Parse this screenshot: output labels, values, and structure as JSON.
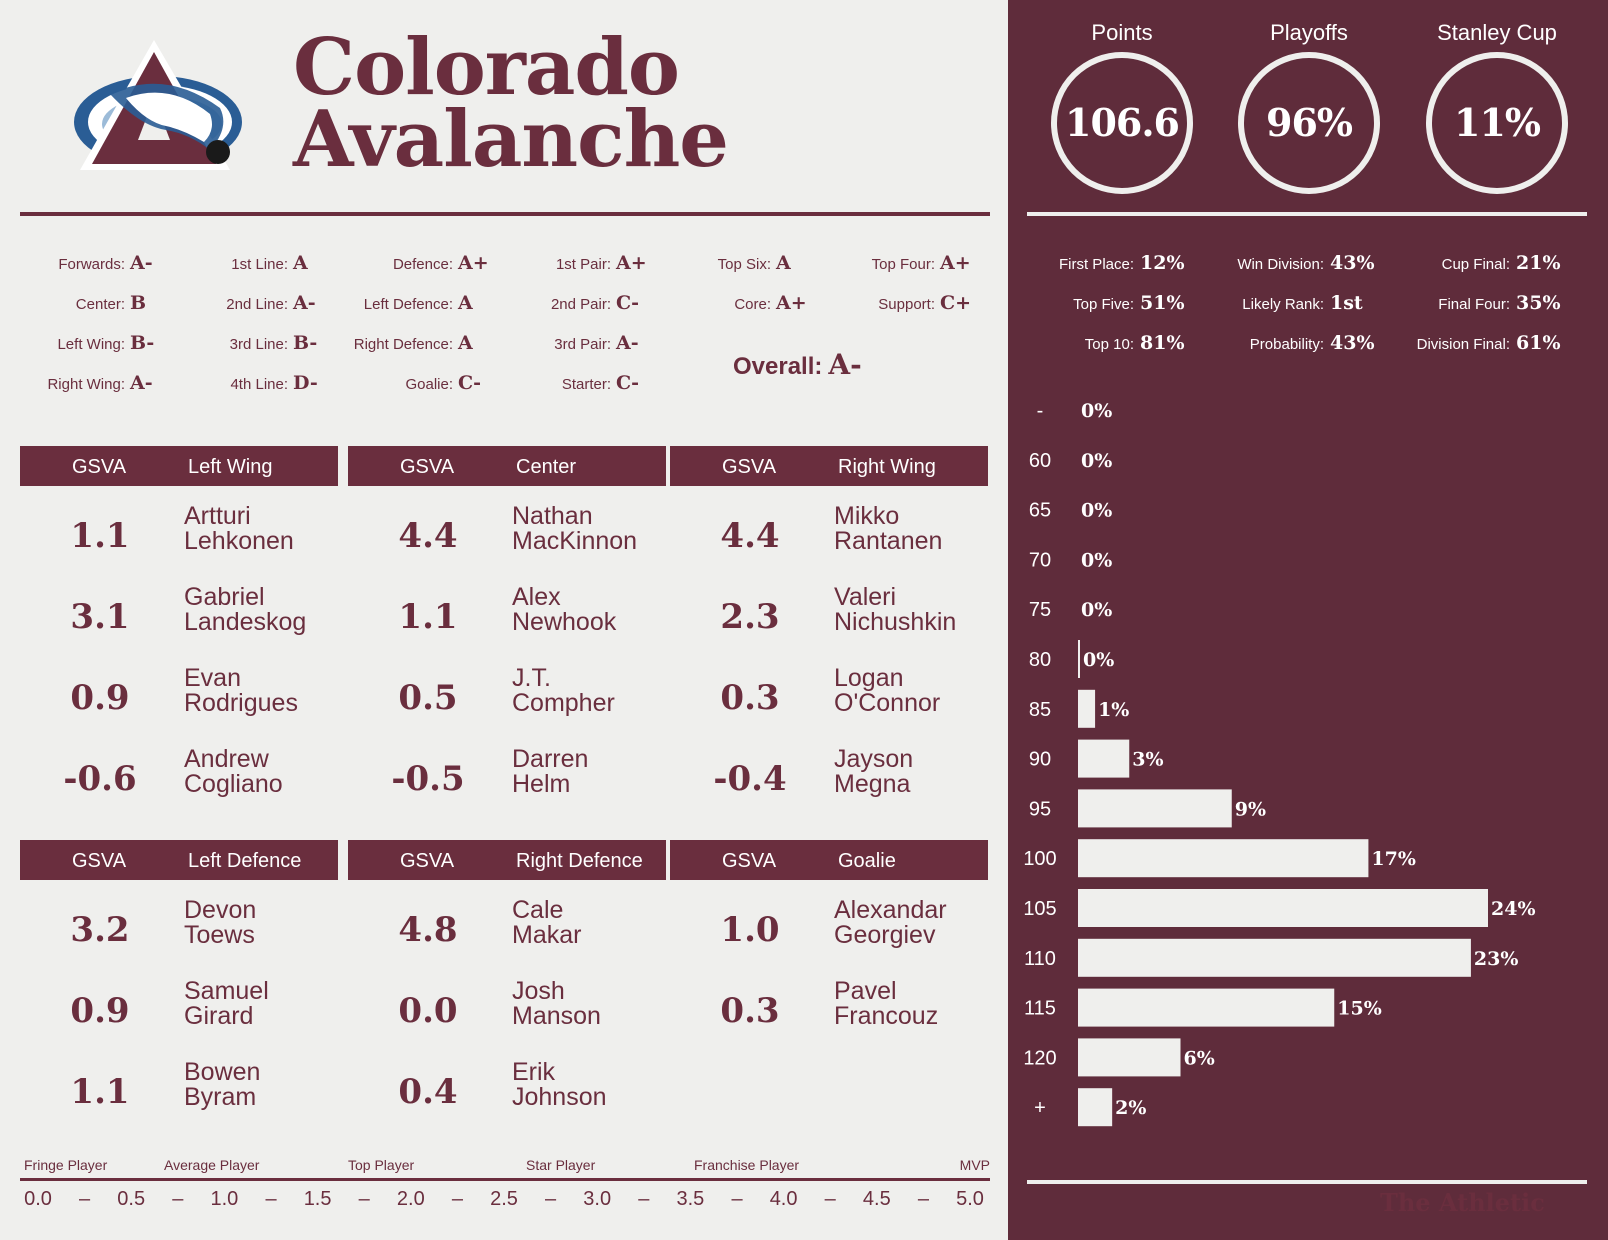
{
  "team": {
    "line1": "Colorado",
    "line2": "Avalanche"
  },
  "colors": {
    "maroon": "#6a2e3e",
    "panel": "#5f2c3b",
    "background": "#efefed",
    "logo_blue": "#2a5d95"
  },
  "grades": [
    {
      "label": "Forwards:",
      "value": "A-"
    },
    {
      "label": "Center:",
      "value": "B"
    },
    {
      "label": "Left Wing:",
      "value": "B-"
    },
    {
      "label": "Right Wing:",
      "value": "A-"
    },
    {
      "label": "1st Line:",
      "value": "A"
    },
    {
      "label": "2nd Line:",
      "value": "A-"
    },
    {
      "label": "3rd Line:",
      "value": "B-"
    },
    {
      "label": "4th Line:",
      "value": "D-"
    },
    {
      "label": "Defence:",
      "value": "A+"
    },
    {
      "label": "Left Defence:",
      "value": "A"
    },
    {
      "label": "Right Defence:",
      "value": "A"
    },
    {
      "label": "Goalie:",
      "value": "C-"
    },
    {
      "label": "1st Pair:",
      "value": "A+"
    },
    {
      "label": "2nd Pair:",
      "value": "C-"
    },
    {
      "label": "3rd Pair:",
      "value": "A-"
    },
    {
      "label": "Starter:",
      "value": "C-"
    },
    {
      "label": "Top Six:",
      "value": "A"
    },
    {
      "label": "Core:",
      "value": "A+"
    },
    {
      "label": "Top Four:",
      "value": "A+"
    },
    {
      "label": "Support:",
      "value": "C+"
    }
  ],
  "overall": {
    "label": "Overall:",
    "value": "A-"
  },
  "tables": [
    {
      "col1": "GSVA",
      "col2": "Left Wing",
      "rows": [
        {
          "gsva": "1.1",
          "first": "Artturi",
          "last": "Lehkonen"
        },
        {
          "gsva": "3.1",
          "first": "Gabriel",
          "last": "Landeskog"
        },
        {
          "gsva": "0.9",
          "first": "Evan",
          "last": "Rodrigues"
        },
        {
          "gsva": "-0.6",
          "first": "Andrew",
          "last": "Cogliano"
        }
      ]
    },
    {
      "col1": "GSVA",
      "col2": "Center",
      "rows": [
        {
          "gsva": "4.4",
          "first": "Nathan",
          "last": "MacKinnon"
        },
        {
          "gsva": "1.1",
          "first": "Alex",
          "last": "Newhook"
        },
        {
          "gsva": "0.5",
          "first": "J.T.",
          "last": "Compher"
        },
        {
          "gsva": "-0.5",
          "first": "Darren",
          "last": "Helm"
        }
      ]
    },
    {
      "col1": "GSVA",
      "col2": "Right Wing",
      "rows": [
        {
          "gsva": "4.4",
          "first": "Mikko",
          "last": "Rantanen"
        },
        {
          "gsva": "2.3",
          "first": "Valeri",
          "last": "Nichushkin"
        },
        {
          "gsva": "0.3",
          "first": "Logan",
          "last": "O'Connor"
        },
        {
          "gsva": "-0.4",
          "first": "Jayson",
          "last": "Megna"
        }
      ]
    },
    {
      "col1": "GSVA",
      "col2": "Left Defence",
      "rows": [
        {
          "gsva": "3.2",
          "first": "Devon",
          "last": "Toews"
        },
        {
          "gsva": "0.9",
          "first": "Samuel",
          "last": "Girard"
        },
        {
          "gsva": "1.1",
          "first": "Bowen",
          "last": "Byram"
        }
      ]
    },
    {
      "col1": "GSVA",
      "col2": "Right Defence",
      "rows": [
        {
          "gsva": "4.8",
          "first": "Cale",
          "last": "Makar"
        },
        {
          "gsva": "0.0",
          "first": "Josh",
          "last": "Manson"
        },
        {
          "gsva": "0.4",
          "first": "Erik",
          "last": "Johnson"
        }
      ]
    },
    {
      "col1": "GSVA",
      "col2": "Goalie",
      "rows": [
        {
          "gsva": "1.0",
          "first": "Alexandar",
          "last": "Georgiev"
        },
        {
          "gsva": "0.3",
          "first": "Pavel",
          "last": "Francouz"
        }
      ]
    }
  ],
  "scale": {
    "labels": [
      "Fringe Player",
      "Average Player",
      "Top Player",
      "Star Player",
      "Franchise Player",
      "MVP"
    ],
    "ticks": [
      "0.0",
      "–",
      "0.5",
      "–",
      "1.0",
      "–",
      "1.5",
      "–",
      "2.0",
      "–",
      "2.5",
      "–",
      "3.0",
      "–",
      "3.5",
      "–",
      "4.0",
      "–",
      "4.5",
      "–",
      "5.0"
    ]
  },
  "summary": [
    {
      "title": "Points",
      "value": "106.6"
    },
    {
      "title": "Playoffs",
      "value": "96%"
    },
    {
      "title": "Stanley Cup",
      "value": "11%"
    }
  ],
  "probabilities": [
    {
      "label": "First Place:",
      "value": "12%"
    },
    {
      "label": "Top Five:",
      "value": "51%"
    },
    {
      "label": "Top 10:",
      "value": "81%"
    },
    {
      "label": "Win Division:",
      "value": "43%"
    },
    {
      "label": "Likely Rank:",
      "value": "1st"
    },
    {
      "label": "Probability:",
      "value": "43%"
    },
    {
      "label": "Cup Final:",
      "value": "21%"
    },
    {
      "label": "Final Four:",
      "value": "35%"
    },
    {
      "label": "Division Final:",
      "value": "61%"
    }
  ],
  "chart_data": {
    "type": "bar",
    "orientation": "horizontal",
    "categories": [
      "-",
      "60",
      "65",
      "70",
      "75",
      "80",
      "85",
      "90",
      "95",
      "100",
      "105",
      "110",
      "115",
      "120",
      "+"
    ],
    "values": [
      0,
      0,
      0,
      0,
      0,
      0,
      1,
      3,
      9,
      17,
      24,
      23,
      15,
      6,
      2
    ],
    "labels": [
      "0%",
      "0%",
      "0%",
      "0%",
      "0%",
      "0%",
      "1%",
      "3%",
      "9%",
      "17%",
      "24%",
      "23%",
      "15%",
      "6%",
      "2%"
    ],
    "xlim": [
      0,
      24
    ]
  },
  "brand": "The Athletic"
}
